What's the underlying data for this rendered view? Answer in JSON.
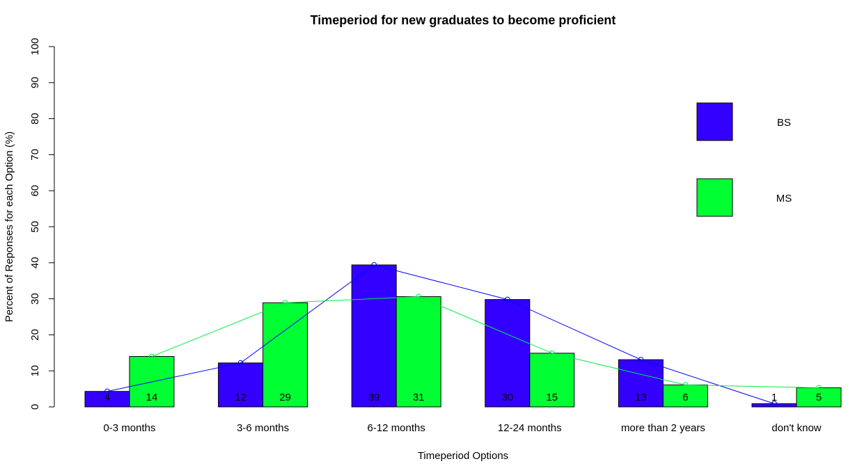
{
  "chart_data": {
    "type": "bar",
    "title": "Timeperiod for new graduates to become proficient",
    "xlabel": "Timeperiod Options",
    "ylabel": "Percent of Reponses for each Option (%)",
    "ylim": [
      0,
      100
    ],
    "yticks": [
      0,
      10,
      20,
      30,
      40,
      50,
      60,
      70,
      80,
      90,
      100
    ],
    "categories": [
      "0-3 months",
      "3-6 months",
      "6-12 months",
      "12-24 months",
      "more than 2 years",
      "don't know"
    ],
    "series": [
      {
        "name": "BS",
        "values": [
          4.3,
          12.2,
          39.4,
          29.8,
          13.1,
          0.9
        ],
        "labels": [
          "4",
          "12",
          "39",
          "30",
          "13",
          "1"
        ],
        "color": "#3300ff",
        "line_color": "#0000ff"
      },
      {
        "name": "MS",
        "values": [
          14,
          28.9,
          30.6,
          14.9,
          6.1,
          5.3
        ],
        "labels": [
          "14",
          "29",
          "31",
          "15",
          "6",
          "5"
        ],
        "color": "#00ff33",
        "line_color": "#00ee44"
      }
    ],
    "legend_position": "top-right",
    "grid": false,
    "overlay": "line with open circle markers at each bar top"
  }
}
